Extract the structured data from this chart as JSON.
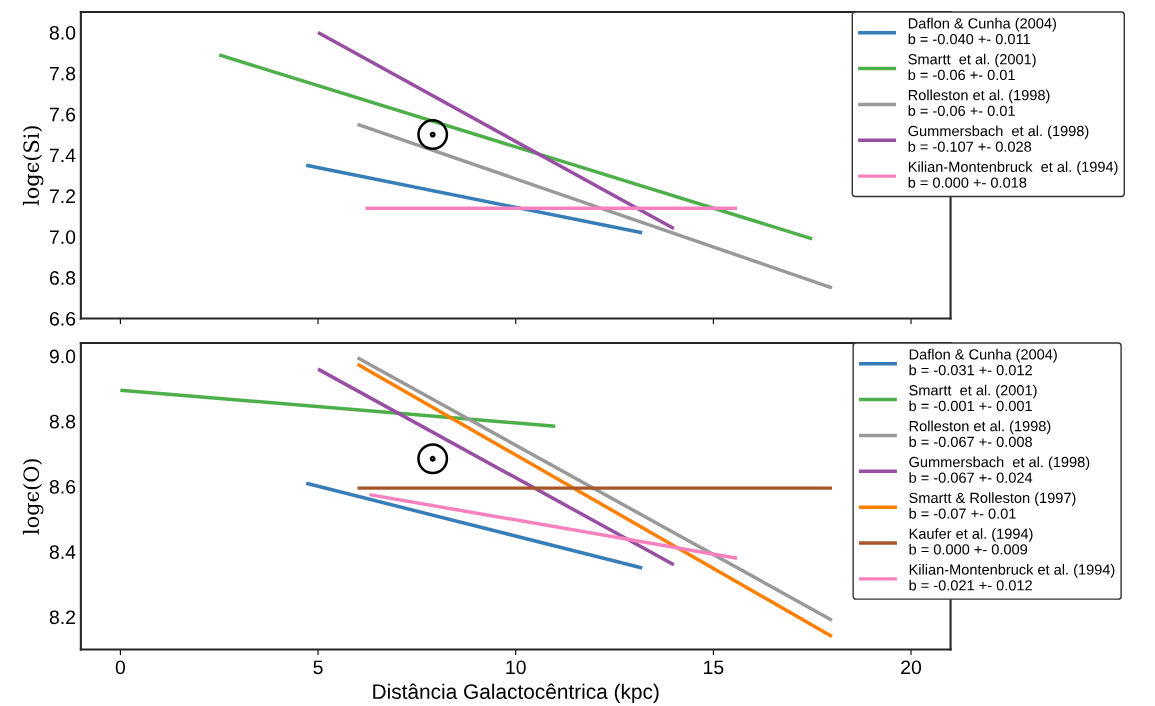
{
  "chart_data": [
    {
      "type": "line",
      "ylabel": "logϵ(Si)",
      "xlim": [
        -1,
        21
      ],
      "xticks": [
        0,
        5,
        10,
        15,
        20
      ],
      "ylim": [
        6.6,
        8.1
      ],
      "yticks": [
        6.6,
        6.8,
        {
          "value": 7,
          "label": "7.0"
        },
        7.2,
        7.4,
        7.6,
        7.8,
        {
          "value": 8,
          "label": "8.0"
        }
      ],
      "tick_labels": "y",
      "legend": "top right",
      "grid": false,
      "series": [
        {
          "name": "Daflon & Cunha (2004)\nb = -0.040 +- 0.011",
          "color": "#377eb8",
          "x": [
            4.7,
            13.2
          ],
          "values": [
            7.35,
            7.02
          ]
        },
        {
          "name": "Smartt  et al. (2001)\nb = -0.06 +- 0.01",
          "color": "#4daf4a",
          "x": [
            2.5,
            17.5
          ],
          "values": [
            7.89,
            6.99
          ]
        },
        {
          "name": "Rolleston et al. (1998)\nb = -0.06 +- 0.01",
          "color": "#999999",
          "x": [
            6.0,
            18.0
          ],
          "values": [
            7.55,
            6.75
          ]
        },
        {
          "name": "Gummersbach  et al. (1998)\nb = -0.107 +- 0.028",
          "color": "#984ea3",
          "x": [
            5.0,
            14.0
          ],
          "values": [
            8.0,
            7.04
          ]
        },
        {
          "name": "Kilian-Montenbruck  et al. (1994)\nb = 0.000 +- 0.018",
          "color": "#f781bf",
          "x": [
            6.2,
            15.6
          ],
          "values": [
            7.14,
            7.14
          ]
        },
        {
          "type": "scatter",
          "color": "#000000",
          "marker": "circle",
          "x": [
            7.9
          ],
          "values": [
            7.5
          ]
        }
      ]
    },
    {
      "type": "line",
      "xlabel": "Distância Galactocêntrica (kpc)",
      "ylabel": "logϵ(O)",
      "xlim": [
        -1,
        21
      ],
      "xticks": [
        0,
        5,
        10,
        15,
        20
      ],
      "ylim": [
        8.1,
        9.04
      ],
      "yticks": [
        8.2,
        8.4,
        8.6,
        8.8,
        {
          "value": 9,
          "label": "9.0"
        }
      ],
      "legend": "top right",
      "grid": false,
      "series": [
        {
          "name": "Daflon & Cunha (2004)\nb = -0.031 +- 0.012",
          "color": "#377eb8",
          "x": [
            4.7,
            13.2
          ],
          "values": [
            8.61,
            8.35
          ]
        },
        {
          "name": "Smartt  et al. (2001)\nb = -0.001 +- 0.001",
          "color": "#4daf4a",
          "x": [
            0.0,
            11.0
          ],
          "values": [
            8.895,
            8.785
          ]
        },
        {
          "name": "Rolleston et al. (1998)\nb = -0.067 +- 0.008",
          "color": "#999999",
          "x": [
            6.0,
            18.0
          ],
          "values": [
            8.995,
            8.19
          ]
        },
        {
          "name": "Gummersbach  et al. (1998)\nb = -0.067 +- 0.024",
          "color": "#984ea3",
          "x": [
            5.0,
            14.0
          ],
          "values": [
            8.96,
            8.36
          ]
        },
        {
          "name": "Smartt & Rolleston (1997)\nb = -0.07 +- 0.01",
          "color": "#ff7f00",
          "x": [
            6.0,
            18.0
          ],
          "values": [
            8.975,
            8.14
          ]
        },
        {
          "name": "Kaufer et al. (1994)\nb = 0.000 +- 0.009",
          "color": "#a65628",
          "x": [
            6.0,
            18.0
          ],
          "values": [
            8.595,
            8.595
          ]
        },
        {
          "name": "Kilian-Montenbruck et al. (1994)\nb = -0.021 +- 0.012",
          "color": "#f781bf",
          "x": [
            6.3,
            15.6
          ],
          "values": [
            8.575,
            8.38
          ]
        },
        {
          "type": "scatter",
          "color": "#000000",
          "marker": "circle",
          "x": [
            7.9
          ],
          "values": [
            8.685
          ]
        }
      ]
    }
  ]
}
